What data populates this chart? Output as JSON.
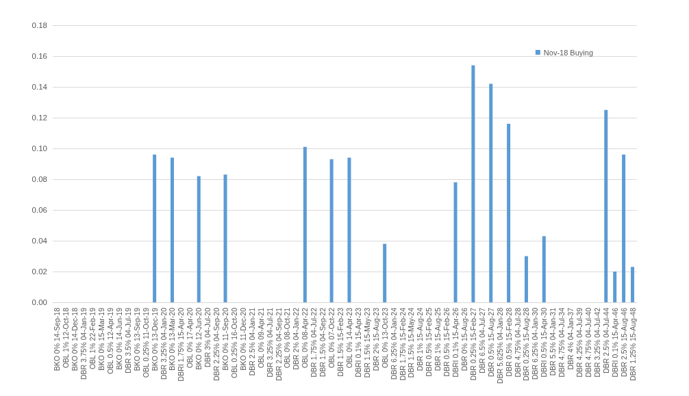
{
  "chart_data": {
    "type": "bar",
    "categories": [
      "BKO 0% 14-Sep-18",
      "OBL 1% 12-Oct-18",
      "BKO 0% 14-Dec-18",
      "DBR 3.75% 04-Jan-19",
      "OBL 1% 22-Feb-19",
      "BKO 0% 15-Mar-19",
      "OBL 0.5% 12-Apr-19",
      "BKO 0% 14-Jun-19",
      "DBR 3.5% 04-Jul-19",
      "BKO 0% 13-Sep-19",
      "OBL 0.25% 11-Oct-19",
      "BKO 0% 13-Dec-19",
      "DBR 3.25% 04-Jan-20",
      "BKO 0% 13-Mar-20",
      "DBRI 1.75% 15-Apr-20",
      "OBL 0% 17-Apr-20",
      "BKO 0% 12-Jun-20",
      "DBR 3% 04-Jul-20",
      "DBR 2.25% 04-Sep-20",
      "BKO 0% 11-Sep-20",
      "OBL 0.25% 16-Oct-20",
      "BKO 0% 11-Dec-20",
      "DBR 2.5% 04-Jan-21",
      "OBL 0% 09-Apr-21",
      "DBR 3.25% 04-Jul-21",
      "DBR 2.25% 04-Sep-21",
      "OBL 0% 08-Oct-21",
      "DBR 2% 04-Jan-22",
      "OBL 0% 08-Apr-22",
      "DBR 1.75% 04-Jul-22",
      "DBR 1.5% 04-Sep-22",
      "OBL 0% 07-Oct-22",
      "DBR 1.5% 15-Feb-23",
      "OBL 0% 14-Apr-23",
      "DBRI 0.1% 15-Apr-23",
      "DBR 1.5% 15-May-23",
      "DBR 2% 15-Aug-23",
      "OBL 0% 13-Oct-23",
      "DBR 6.25% 04-Jan-24",
      "DBR 1.75% 15-Feb-24",
      "DBR 1.5% 15-May-24",
      "DBR 1% 15-Aug-24",
      "DBR 0.5% 15-Feb-25",
      "DBR 1% 15-Aug-25",
      "DBR 0.5% 15-Feb-26",
      "DBRI 0.1% 15-Apr-26",
      "DBR 0% 15-Aug-26",
      "DBR 0.25% 15-Feb-27",
      "DBR 6.5% 04-Jul-27",
      "DBR 0.5% 15-Aug-27",
      "DBR 5.625% 04-Jan-28",
      "DBR 0.5% 15-Feb-28",
      "DBR 4.75% 04-Jul-28",
      "DBR 0.25% 15-Aug-28",
      "DBR 6.25% 04-Jan-30",
      "DBRI 0.5% 15-Apr-30",
      "DBR 5.5% 04-Jan-31",
      "DBR 4.75% 04-Jul-34",
      "DBR 4% 04-Jan-37",
      "DBR 4.25% 04-Jul-39",
      "DBR 4.75% 04-Jul-40",
      "DBR 3.25% 04-Jul-42",
      "DBR 2.5% 04-Jul-44",
      "DBRI 0.1% 15-Apr-46",
      "DBR 2.5% 15-Aug-46",
      "DBR 1.25% 15-Aug-48"
    ],
    "series": [
      {
        "name": "Nov-18 Buying",
        "color": "#5b9bd5",
        "values": [
          null,
          null,
          null,
          null,
          null,
          null,
          null,
          null,
          null,
          null,
          null,
          0.096,
          null,
          0.094,
          null,
          null,
          0.082,
          null,
          null,
          0.083,
          null,
          null,
          null,
          null,
          null,
          null,
          null,
          null,
          0.101,
          null,
          null,
          0.093,
          null,
          0.094,
          null,
          null,
          null,
          0.038,
          null,
          null,
          null,
          null,
          null,
          null,
          null,
          0.078,
          null,
          0.154,
          null,
          0.142,
          null,
          0.116,
          null,
          0.03,
          null,
          0.043,
          null,
          null,
          null,
          null,
          null,
          null,
          0.125,
          0.02,
          0.096,
          0.023
        ]
      }
    ],
    "ylim": [
      0,
      0.18
    ],
    "yticks": [
      {
        "value": 0,
        "label": "0.00"
      },
      {
        "value": 0.02,
        "label": "0.02"
      },
      {
        "value": 0.04,
        "label": "0.04"
      },
      {
        "value": 0.06,
        "label": "0.06"
      },
      {
        "value": 0.08,
        "label": "0.08"
      },
      {
        "value": 0.1,
        "label": "0.10"
      },
      {
        "value": 0.12,
        "label": "0.12"
      },
      {
        "value": 0.14,
        "label": "0.14"
      },
      {
        "value": 0.16,
        "label": "0.16"
      },
      {
        "value": 0.18,
        "label": "0.18"
      }
    ],
    "grid": "y",
    "legend": "top right"
  }
}
